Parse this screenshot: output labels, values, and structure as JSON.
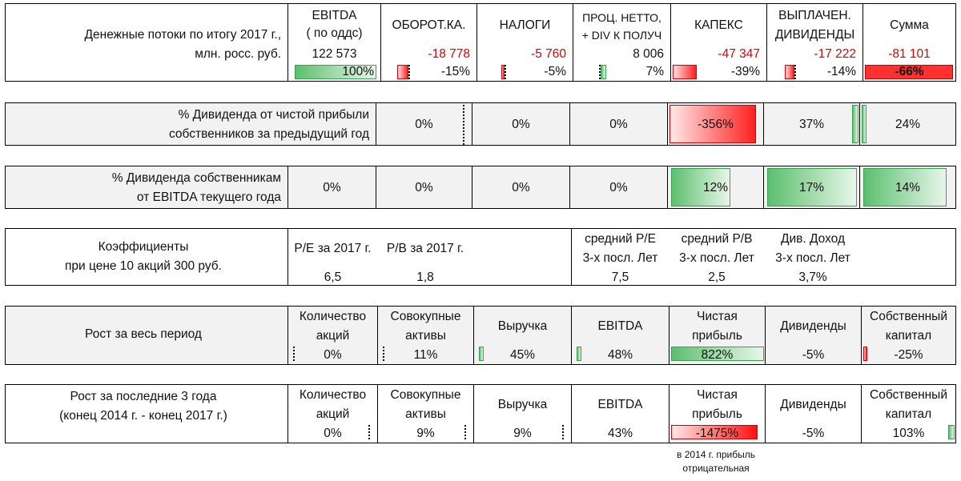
{
  "cash": {
    "title_line1": "Денежные потоки по итогу 2017 г.,",
    "title_line2": "млн. росс. руб.",
    "headers": [
      {
        "l1": "EBITDA",
        "l2": "( по оддс)"
      },
      {
        "l1": "ОБОРОТ.КА.",
        "l2": ""
      },
      {
        "l1": "НАЛОГИ",
        "l2": ""
      },
      {
        "l1": "ПРОЦ. НЕТТО,",
        "l2": "+ DIV К ПОЛУЧ"
      },
      {
        "l1": "КАПЕКС",
        "l2": ""
      },
      {
        "l1": "ВЫПЛАЧЕН.",
        "l2": "ДИВИДЕНДЫ"
      },
      {
        "l1": "Сумма",
        "l2": ""
      }
    ],
    "values": [
      "122 573",
      "-18 778",
      "-5 760",
      "8 006",
      "-47 347",
      "-17 222",
      "-81 101"
    ],
    "percents": [
      "100%",
      "-15%",
      "-5%",
      "7%",
      "-39%",
      "-14%",
      "-66%"
    ],
    "share_of_ebitda": [
      1.0,
      -0.15,
      -0.05,
      0.07,
      -0.39,
      -0.14,
      -0.66
    ]
  },
  "div_profit": {
    "line1": "% Дивиденда от чистой прибыли",
    "line2": "собственников за предыдущий год",
    "values": [
      "",
      "0%",
      "0%",
      "0%",
      "-356%",
      "37%",
      "24%"
    ]
  },
  "div_ebitda": {
    "line1": "% Дивиденда собственникам",
    "line2": "от EBITDA текущего года",
    "values": [
      "0%",
      "0%",
      "0%",
      "0%",
      "12%",
      "17%",
      "14%"
    ]
  },
  "ratios": {
    "line1": "Коэффициенты",
    "line2": "при цене 10 акций 300 руб.",
    "items": [
      {
        "l1": "P/E за 2017 г.",
        "l2": "",
        "v": "6,5"
      },
      {
        "l1": "P/B за 2017 г.",
        "l2": "",
        "v": "1,8"
      },
      {
        "l1": "",
        "l2": "",
        "v": ""
      },
      {
        "l1": "средний P/E",
        "l2": "3-х посл. Лет",
        "v": "7,5"
      },
      {
        "l1": "средний P/B",
        "l2": "3-х посл. Лет",
        "v": "2,5"
      },
      {
        "l1": "Див. Доход",
        "l2": "3-х посл. Лет",
        "v": "3,7%"
      }
    ]
  },
  "growth_all": {
    "title": "Рост за весь период",
    "headers": [
      {
        "l1": "Количество",
        "l2": "акций"
      },
      {
        "l1": "Совокупные",
        "l2": "активы"
      },
      {
        "l1": "Выручка",
        "l2": ""
      },
      {
        "l1": "EBITDA",
        "l2": ""
      },
      {
        "l1": "Чистая",
        "l2": "прибыль"
      },
      {
        "l1": "Дивиденды",
        "l2": ""
      },
      {
        "l1": "Собственный",
        "l2": "капитал"
      }
    ],
    "values": [
      "0%",
      "11%",
      "45%",
      "48%",
      "822%",
      "-5%",
      "-25%"
    ]
  },
  "growth_3y": {
    "line1": "Рост за последние 3 года",
    "line2": "(конец 2014 г. - конец 2017 г.)",
    "headers": [
      {
        "l1": "Количество",
        "l2": "акций"
      },
      {
        "l1": "Совокупные",
        "l2": "активы"
      },
      {
        "l1": "Выручка",
        "l2": ""
      },
      {
        "l1": "EBITDA",
        "l2": ""
      },
      {
        "l1": "Чистая",
        "l2": "прибыль"
      },
      {
        "l1": "Дивиденды",
        "l2": ""
      },
      {
        "l1": "Собственный",
        "l2": "капитал"
      }
    ],
    "values": [
      "0%",
      "9%",
      "9%",
      "43%",
      "-1475%",
      "-5%",
      "103%"
    ],
    "note_line1": "в 2014 г. прибыль",
    "note_line2": "отрицательная"
  }
}
